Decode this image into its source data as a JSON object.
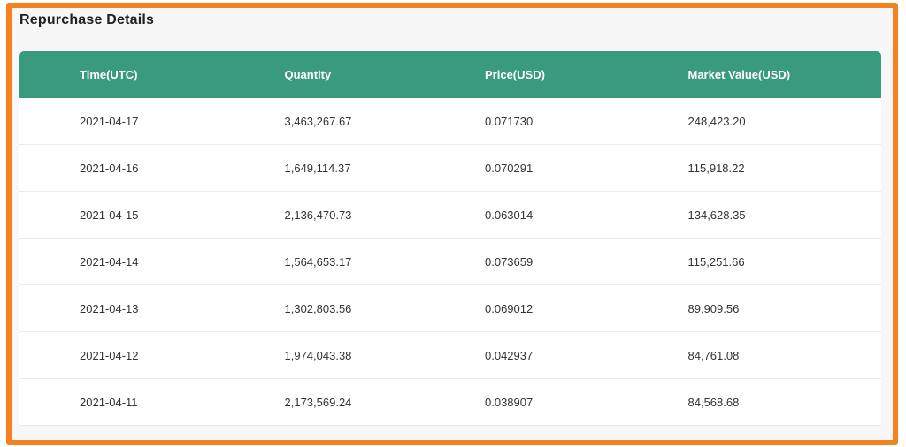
{
  "page_title": "Repurchase Details",
  "table": {
    "columns": [
      "Time(UTC)",
      "Quantity",
      "Price(USD)",
      "Market Value(USD)"
    ],
    "rows": [
      [
        "2021-04-17",
        "3,463,267.67",
        "0.071730",
        "248,423.20"
      ],
      [
        "2021-04-16",
        "1,649,114.37",
        "0.070291",
        "115,918.22"
      ],
      [
        "2021-04-15",
        "2,136,470.73",
        "0.063014",
        "134,628.35"
      ],
      [
        "2021-04-14",
        "1,564,653.17",
        "0.073659",
        "115,251.66"
      ],
      [
        "2021-04-13",
        "1,302,803.56",
        "0.069012",
        "89,909.56"
      ],
      [
        "2021-04-12",
        "1,974,043.38",
        "0.042937",
        "84,761.08"
      ],
      [
        "2021-04-11",
        "2,173,569.24",
        "0.038907",
        "84,568.68"
      ]
    ]
  },
  "colors": {
    "header_bg": "#3A9A7D",
    "frame_border": "#F5821F",
    "panel_bg": "#F7F7F7"
  }
}
